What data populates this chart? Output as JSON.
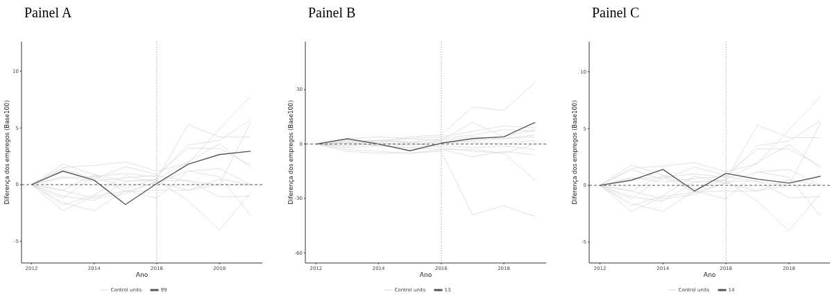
{
  "chart_data": [
    {
      "type": "line",
      "title": "Painel A",
      "xlabel": "Ano",
      "ylabel": "Diferença dos empregos (Base100)",
      "x": [
        2012,
        2013,
        2014,
        2015,
        2016,
        2017,
        2018,
        2019
      ],
      "xlim": [
        2011.68,
        2019.37
      ],
      "xticks": [
        2012,
        2014,
        2016,
        2018
      ],
      "ylim": [
        -6.9,
        12.6
      ],
      "yticks": [
        -5,
        0,
        5,
        10
      ],
      "grid": false,
      "legend": "bottom",
      "line_style": "solid",
      "marker": "none",
      "ref_lines": [
        {
          "axis": "y",
          "value": 0,
          "color": "#555555",
          "line_style": "dashed"
        },
        {
          "axis": "x",
          "value": 2016,
          "color": "#aaaaaa",
          "line_style": "dotted"
        }
      ],
      "series": [
        {
          "name": "Control units",
          "color": "#d9d9d9",
          "values": [
            0,
            1.5,
            1.7,
            2.0,
            1.2,
            1.9,
            4.9,
            7.8
          ]
        },
        {
          "color": "#d9d9d9",
          "values": [
            0,
            1.8,
            0.9,
            0.3,
            0.5,
            5.3,
            4.2,
            4.2
          ]
        },
        {
          "color": "#d9d9d9",
          "values": [
            0,
            0.6,
            0.7,
            1.0,
            0.7,
            3.5,
            3.9,
            5.7
          ]
        },
        {
          "color": "#d9d9d9",
          "values": [
            0,
            1.4,
            0.5,
            1.6,
            0.9,
            3.2,
            3.2,
            1.7
          ]
        },
        {
          "color": "#d9d9d9",
          "values": [
            0,
            -0.5,
            0.9,
            -0.3,
            0.5,
            2.0,
            3.6,
            1.5
          ]
        },
        {
          "color": "#d9d9d9",
          "values": [
            0,
            -1.8,
            -0.9,
            0.8,
            0.2,
            1.2,
            1.4,
            0
          ]
        },
        {
          "color": "#d9d9d9",
          "values": [
            0,
            -2.3,
            -1.0,
            -0.6,
            -0.5,
            -0.5,
            0,
            5.5
          ]
        },
        {
          "color": "#d9d9d9",
          "values": [
            0,
            -1.6,
            -2.3,
            -0.5,
            -1.2,
            1.2,
            0.7,
            -2.7
          ]
        },
        {
          "color": "#d9d9d9",
          "values": [
            0,
            -1.0,
            -1.4,
            0.3,
            0.4,
            -1.4,
            -4.0,
            -0.7
          ]
        },
        {
          "color": "#d9d9d9",
          "values": [
            0,
            -0.5,
            -1.2,
            -0.8,
            0.3,
            0.4,
            -1.1,
            -1.0
          ]
        },
        {
          "color": "#d9d9d9",
          "values": [
            0,
            0.7,
            0.3,
            0.6,
            0.8,
            0.3,
            0,
            0
          ]
        },
        {
          "color": "#d9d9d9",
          "values": [
            0,
            -1.2,
            0.8,
            -0.6,
            0.2,
            -0.5,
            0.5,
            0
          ]
        },
        {
          "name": "99",
          "color": "#555555",
          "values": [
            0,
            1.2,
            0.4,
            -1.75,
            0.1,
            1.8,
            2.65,
            2.95
          ]
        }
      ]
    },
    {
      "type": "line",
      "title": "Painel B",
      "xlabel": "Ano",
      "ylabel": "Diferença dos empregos (Base100)",
      "x": [
        2012,
        2013,
        2014,
        2015,
        2016,
        2017,
        2018,
        2019
      ],
      "xlim": [
        2011.66,
        2019.35
      ],
      "xticks": [
        2012,
        2014,
        2016,
        2018
      ],
      "ylim": [
        -65.6,
        56.5
      ],
      "yticks": [
        -60,
        -30,
        0,
        30
      ],
      "grid": false,
      "legend": "bottom",
      "line_style": "solid",
      "marker": "none",
      "ref_lines": [
        {
          "axis": "y",
          "value": 0,
          "color": "#555555",
          "line_style": "dashed"
        },
        {
          "axis": "x",
          "value": 2016,
          "color": "#aaaaaa",
          "line_style": "dotted"
        }
      ],
      "series": [
        {
          "name": "Control units",
          "color": "#d9d9d9",
          "values": [
            0,
            2,
            1,
            4,
            5,
            20.5,
            18.5,
            34
          ]
        },
        {
          "color": "#d9d9d9",
          "values": [
            0,
            -1,
            2,
            3,
            2,
            12,
            4,
            8
          ]
        },
        {
          "color": "#d9d9d9",
          "values": [
            0,
            3,
            4,
            3,
            4,
            7,
            10,
            9
          ]
        },
        {
          "color": "#d9d9d9",
          "values": [
            0,
            -3,
            -4,
            -5,
            -4,
            -39,
            -34,
            -40
          ]
        },
        {
          "color": "#d9d9d9",
          "values": [
            0,
            1,
            -1,
            -2,
            -3,
            -3,
            -5,
            -20
          ]
        },
        {
          "color": "#d9d9d9",
          "values": [
            0,
            -4,
            -5,
            -5,
            -3,
            -7,
            -4,
            -6
          ]
        },
        {
          "color": "#d9d9d9",
          "values": [
            0,
            1,
            2,
            1,
            3,
            5,
            8,
            7
          ]
        },
        {
          "color": "#d9d9d9",
          "values": [
            0,
            -2,
            -1,
            0,
            -1,
            -2,
            -1,
            -3
          ]
        },
        {
          "color": "#d9d9d9",
          "values": [
            0,
            0.5,
            1,
            -1,
            2,
            4,
            3,
            5
          ]
        },
        {
          "color": "#d9d9d9",
          "values": [
            0,
            2,
            2,
            1,
            1,
            1,
            0,
            2
          ]
        },
        {
          "color": "#d9d9d9",
          "values": [
            0,
            -1,
            0,
            1,
            -2,
            -4,
            -5,
            0
          ]
        },
        {
          "color": "#d9d9d9",
          "values": [
            0,
            1,
            -1,
            -2,
            0,
            2,
            3,
            4
          ]
        },
        {
          "name": "13",
          "color": "#555555",
          "values": [
            0,
            2.9,
            0,
            -3.7,
            0.5,
            3,
            4,
            12
          ]
        }
      ]
    },
    {
      "type": "line",
      "title": "Painel C",
      "xlabel": "Ano",
      "ylabel": "Diferença dos empregos (Base100)",
      "x": [
        2012,
        2013,
        2014,
        2015,
        2016,
        2017,
        2018,
        2019
      ],
      "xlim": [
        2011.66,
        2019.3
      ],
      "xticks": [
        2012,
        2014,
        2016,
        2018
      ],
      "ylim": [
        -6.84,
        12.66
      ],
      "yticks": [
        -5,
        0,
        5,
        10
      ],
      "grid": false,
      "legend": "bottom",
      "line_style": "solid",
      "marker": "none",
      "ref_lines": [
        {
          "axis": "y",
          "value": 0,
          "color": "#555555",
          "line_style": "dashed"
        },
        {
          "axis": "x",
          "value": 2016,
          "color": "#aaaaaa",
          "line_style": "dotted"
        }
      ],
      "series": [
        {
          "name": "Control units",
          "color": "#d9d9d9",
          "values": [
            0,
            1.5,
            1.7,
            2.0,
            1.2,
            1.9,
            4.9,
            7.8
          ]
        },
        {
          "color": "#d9d9d9",
          "values": [
            0,
            1.8,
            0.9,
            0.3,
            0.5,
            5.3,
            4.2,
            4.2
          ]
        },
        {
          "color": "#d9d9d9",
          "values": [
            0,
            0.6,
            0.7,
            1.0,
            0.7,
            3.5,
            3.9,
            5.7
          ]
        },
        {
          "color": "#d9d9d9",
          "values": [
            0,
            1.4,
            0.5,
            1.6,
            0.9,
            3.2,
            3.2,
            1.7
          ]
        },
        {
          "color": "#d9d9d9",
          "values": [
            0,
            -0.5,
            0.9,
            -0.3,
            0.5,
            2.0,
            3.6,
            1.5
          ]
        },
        {
          "color": "#d9d9d9",
          "values": [
            0,
            -1.8,
            -0.9,
            0.8,
            0.2,
            1.2,
            1.4,
            0
          ]
        },
        {
          "color": "#d9d9d9",
          "values": [
            0,
            -2.3,
            -1.0,
            -0.6,
            -0.5,
            -0.5,
            0,
            5.5
          ]
        },
        {
          "color": "#d9d9d9",
          "values": [
            0,
            -1.6,
            -2.3,
            -0.5,
            -1.2,
            1.2,
            0.7,
            -2.7
          ]
        },
        {
          "color": "#d9d9d9",
          "values": [
            0,
            -1.0,
            -1.4,
            0.3,
            0.4,
            -1.4,
            -4.0,
            -0.7
          ]
        },
        {
          "color": "#d9d9d9",
          "values": [
            0,
            -0.5,
            -1.2,
            -0.8,
            0.3,
            0.4,
            -1.1,
            -1.0
          ]
        },
        {
          "color": "#d9d9d9",
          "values": [
            0,
            0.7,
            0.3,
            0.6,
            0.8,
            0.3,
            0,
            0
          ]
        },
        {
          "color": "#d9d9d9",
          "values": [
            0,
            -1.2,
            0.8,
            -0.6,
            0.2,
            -0.5,
            0.5,
            0
          ]
        },
        {
          "name": "14",
          "color": "#555555",
          "values": [
            0,
            0.45,
            1.4,
            -0.5,
            1.05,
            0.55,
            0.2,
            0.8
          ]
        }
      ]
    }
  ]
}
